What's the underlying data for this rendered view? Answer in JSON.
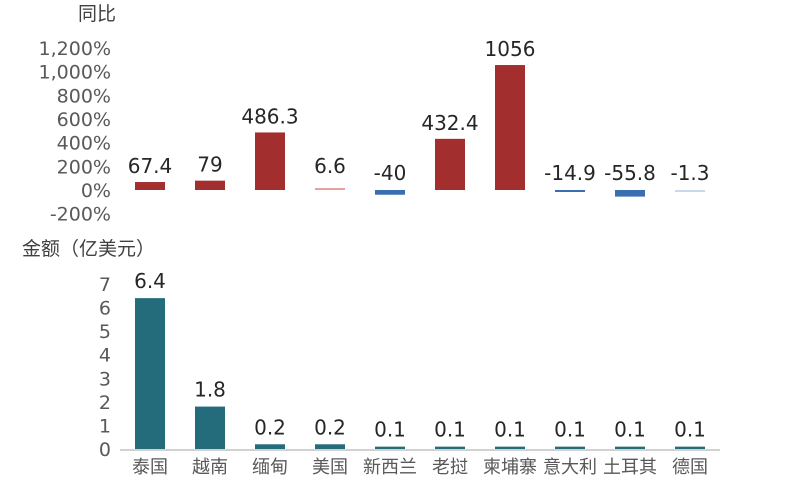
{
  "chart_data": [
    {
      "type": "bar",
      "title": "",
      "ylabel": "同比",
      "xlabel": "",
      "categories": [
        "泰国",
        "越南",
        "缅甸",
        "美国",
        "新西兰",
        "老挝",
        "柬埔寨",
        "意大利",
        "土耳其",
        "德国"
      ],
      "values": [
        67.4,
        79,
        486.3,
        6.6,
        -40,
        432.4,
        1056,
        -14.9,
        -55.8,
        -1.3
      ],
      "value_labels": [
        "67.4",
        "79",
        "486.3",
        "6.6",
        "-40",
        "432.4",
        "1056",
        "-14.9",
        "-55.8",
        "-1.3"
      ],
      "ylim": [
        -200,
        1200
      ],
      "yticks": [
        -200,
        0,
        200,
        400,
        600,
        800,
        1000,
        1200
      ],
      "ytick_labels": [
        "-200%",
        "0%",
        "200%",
        "400%",
        "600%",
        "800%",
        "1,000%",
        "1,200%"
      ],
      "colors": {
        "positive": "#A32E2E",
        "small_positive": "#E8A0A0",
        "negative": "#3A6EB0",
        "near_zero": "#C9D9EC"
      },
      "grid": false,
      "legend": "none"
    },
    {
      "type": "bar",
      "title": "",
      "ylabel": "金额（亿美元）",
      "xlabel": "",
      "categories": [
        "泰国",
        "越南",
        "缅甸",
        "美国",
        "新西兰",
        "老挝",
        "柬埔寨",
        "意大利",
        "土耳其",
        "德国"
      ],
      "values": [
        6.4,
        1.8,
        0.2,
        0.2,
        0.1,
        0.1,
        0.1,
        0.1,
        0.1,
        0.1
      ],
      "value_labels": [
        "6.4",
        "1.8",
        "0.2",
        "0.2",
        "0.1",
        "0.1",
        "0.1",
        "0.1",
        "0.1",
        "0.1"
      ],
      "ylim": [
        0,
        7
      ],
      "yticks": [
        0,
        1,
        2,
        3,
        4,
        5,
        6,
        7
      ],
      "ytick_labels": [
        "0",
        "1",
        "2",
        "3",
        "4",
        "5",
        "6",
        "7"
      ],
      "colors": {
        "bar": "#246B7B",
        "axis": "#A6A6A6"
      },
      "grid": false,
      "legend": "none"
    }
  ]
}
